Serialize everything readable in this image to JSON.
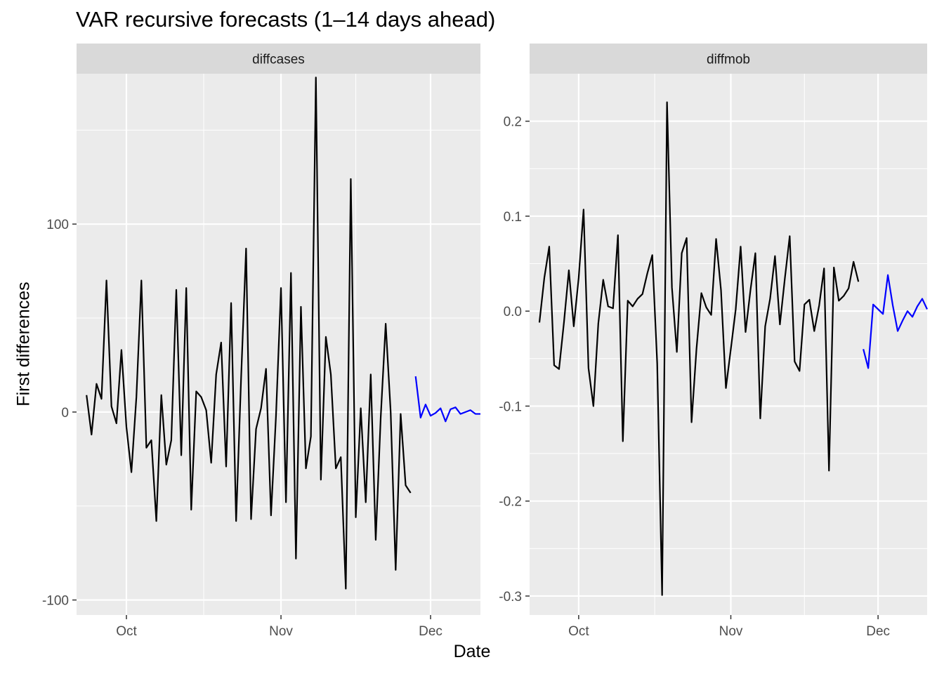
{
  "chart_data": {
    "type": "line",
    "title": "VAR recursive forecasts (1–14 days ahead)",
    "xlabel": "Date",
    "ylabel": "First differences",
    "x_axis": {
      "type": "date",
      "range": [
        "2020-09-21",
        "2020-12-11"
      ],
      "ticks": [
        {
          "date": "2020-10-01",
          "label": "Oct"
        },
        {
          "date": "2020-11-01",
          "label": "Nov"
        },
        {
          "date": "2020-12-01",
          "label": "Dec"
        }
      ]
    },
    "grid": true,
    "legend": "none",
    "colors": {
      "observed": "#000000",
      "forecast": "#0000ff",
      "panel_bg": "#ebebeb",
      "strip_bg": "#d9d9d9",
      "grid": "#ffffff"
    },
    "panels": [
      {
        "strip": "diffcases",
        "ylim": [
          -108,
          180
        ],
        "yticks": [
          {
            "value": 100,
            "label": "100"
          },
          {
            "value": 0,
            "label": "0"
          },
          {
            "value": -100,
            "label": "-100"
          }
        ],
        "ymgrid": [
          150,
          50,
          -50
        ],
        "series": [
          {
            "role": "observed",
            "start": "2020-09-23",
            "values": [
              9,
              -12,
              15,
              7,
              70,
              3,
              -6,
              33,
              -8,
              -32,
              8,
              70,
              -19,
              -15,
              -58,
              9,
              -28,
              -15,
              65,
              -23,
              66,
              -52,
              11,
              8,
              1,
              -27,
              20,
              37,
              -29,
              58,
              -58,
              18,
              87,
              -57,
              -9,
              2,
              23,
              -55,
              -2,
              66,
              -48,
              74,
              -78,
              56,
              -30,
              -13,
              178,
              -36,
              40,
              20,
              -30,
              -24,
              -94,
              124,
              -56,
              2,
              -48,
              20,
              -68,
              -3,
              47,
              0,
              -84,
              -1,
              -39,
              -43
            ]
          },
          {
            "role": "forecast",
            "start": "2020-11-28",
            "values": [
              19,
              -3,
              4,
              -2,
              -0.5,
              2,
              -5,
              1.5,
              2.5,
              -1,
              0,
              1,
              -1,
              -1
            ]
          }
        ]
      },
      {
        "strip": "diffmob",
        "ylim": [
          -0.32,
          0.25
        ],
        "yticks": [
          {
            "value": 0.2,
            "label": "0.2"
          },
          {
            "value": 0.1,
            "label": "0.1"
          },
          {
            "value": 0.0,
            "label": "0.0"
          },
          {
            "value": -0.1,
            "label": "-0.1"
          },
          {
            "value": -0.2,
            "label": "-0.2"
          },
          {
            "value": -0.3,
            "label": "-0.3"
          }
        ],
        "ymgrid": [
          0.15,
          0.05,
          -0.05,
          -0.15,
          -0.25
        ],
        "series": [
          {
            "role": "observed",
            "start": "2020-09-23",
            "values": [
              -0.012,
              0.035,
              0.068,
              -0.057,
              -0.061,
              -0.012,
              0.043,
              -0.016,
              0.035,
              0.107,
              -0.06,
              -0.1,
              -0.013,
              0.033,
              0.005,
              0.003,
              0.08,
              -0.137,
              0.011,
              0.005,
              0.013,
              0.018,
              0.04,
              0.059,
              -0.055,
              -0.299,
              0.22,
              0.025,
              -0.043,
              0.061,
              0.077,
              -0.117,
              -0.04,
              0.019,
              0.004,
              -0.004,
              0.076,
              0.022,
              -0.081,
              -0.04,
              0.002,
              0.068,
              -0.022,
              0.022,
              0.061,
              -0.113,
              -0.016,
              0.013,
              0.058,
              -0.014,
              0.034,
              0.079,
              -0.053,
              -0.063,
              0.007,
              0.012,
              -0.021,
              0.006,
              0.045,
              -0.168,
              0.046,
              0.011,
              0.016,
              0.024,
              0.052,
              0.031
            ]
          },
          {
            "role": "forecast",
            "start": "2020-11-28",
            "values": [
              -0.04,
              -0.06,
              0.007,
              0.002,
              -0.003,
              0.038,
              0.006,
              -0.021,
              -0.01,
              0.0,
              -0.006,
              0.005,
              0.013,
              0.002
            ]
          }
        ]
      }
    ]
  }
}
